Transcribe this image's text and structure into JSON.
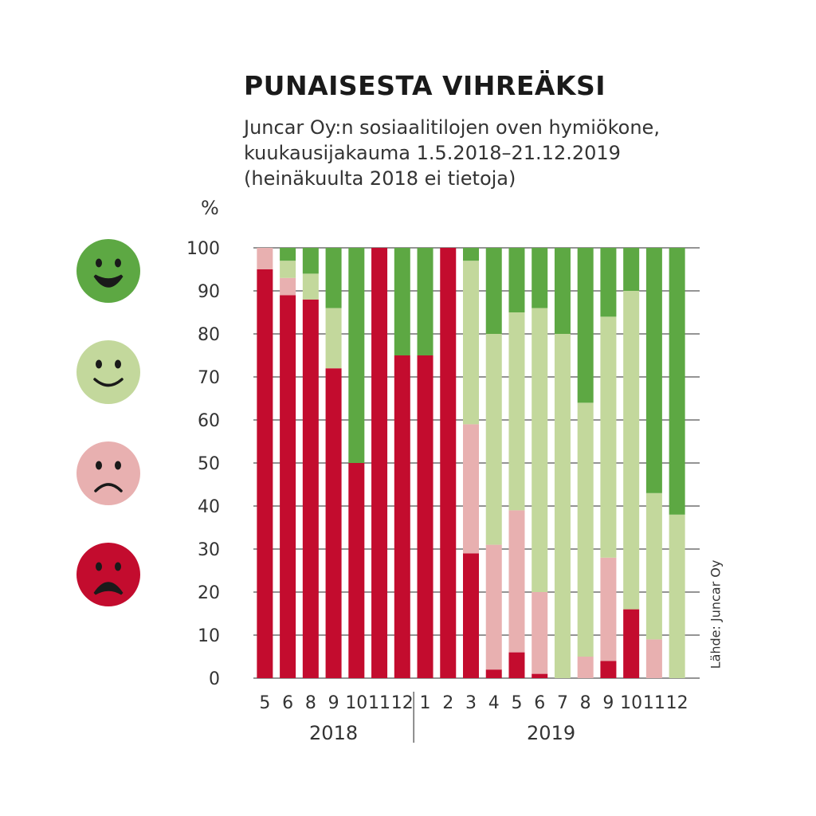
{
  "chart_data": {
    "type": "bar",
    "stacked": true,
    "title": "PUNAISESTA VIHREÄKSI",
    "subtitle": [
      "Juncar Oy:n sosiaalitilojen oven hymiökone,",
      "kuukausijakauma 1.5.2018–21.12.2019",
      "(heinäkuulta 2018 ei tietoja)"
    ],
    "ylabel": "%",
    "source": "Lähde: Juncar Oy",
    "ylim": [
      0,
      100
    ],
    "yticks": [
      "0",
      "10",
      "20",
      "30",
      "40",
      "50",
      "60",
      "70",
      "80",
      "90",
      "100"
    ],
    "categories": [
      "5",
      "6",
      "8",
      "9",
      "10",
      "11",
      "12",
      "1",
      "2",
      "3",
      "4",
      "5",
      "6",
      "7",
      "8",
      "9",
      "10",
      "11",
      "12"
    ],
    "years": [
      {
        "label": "2018",
        "count": 7
      },
      {
        "label": "2019",
        "count": 12
      }
    ],
    "series": [
      {
        "icon": "very-sad-face-icon",
        "color": "#c30c2e",
        "values": [
          95,
          89,
          88,
          72,
          50,
          100,
          75,
          75,
          100,
          29,
          2,
          6,
          1,
          0,
          0,
          4,
          16,
          0,
          0
        ]
      },
      {
        "icon": "sad-face-icon",
        "color": "#e8b0b0",
        "values": [
          5,
          4,
          0,
          0,
          0,
          0,
          0,
          0,
          0,
          30,
          29,
          33,
          19,
          0,
          5,
          24,
          0,
          9,
          0
        ]
      },
      {
        "icon": "happy-face-icon",
        "color": "#c3d89c",
        "values": [
          0,
          4,
          6,
          14,
          0,
          0,
          0,
          0,
          0,
          38,
          49,
          46,
          66,
          80,
          59,
          56,
          74,
          34,
          38
        ]
      },
      {
        "icon": "very-happy-face-icon",
        "color": "#5da843",
        "values": [
          0,
          3,
          6,
          14,
          50,
          0,
          25,
          25,
          0,
          3,
          20,
          15,
          14,
          20,
          36,
          16,
          10,
          57,
          62
        ]
      }
    ]
  }
}
